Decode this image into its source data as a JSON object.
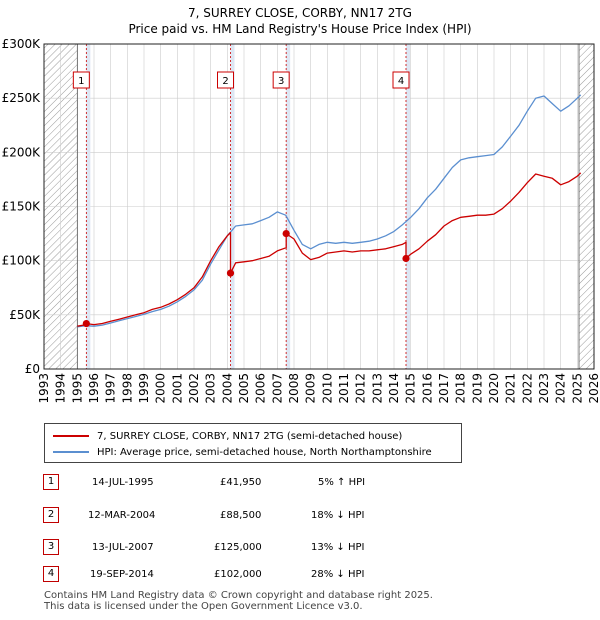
{
  "title_line1": "7, SURREY CLOSE, CORBY, NN17 2TG",
  "title_line2": "Price paid vs. HM Land Registry's House Price Index (HPI)",
  "colors": {
    "property": "#cc0000",
    "hpi": "#5b8fd0",
    "highlight": "#dde6f3",
    "hatch": "#999999",
    "grid": "#cccccc",
    "marker": "#cc0000"
  },
  "chart_data": {
    "type": "line",
    "title": "Price paid vs. HM Land Registry's House Price Index (HPI)",
    "xlim": [
      1993,
      2026
    ],
    "ylim": [
      0,
      300000
    ],
    "x_ticks": [
      "1993",
      "1994",
      "1995",
      "1996",
      "1997",
      "1998",
      "1999",
      "2000",
      "2001",
      "2002",
      "2003",
      "2004",
      "2005",
      "2006",
      "2007",
      "2008",
      "2009",
      "2010",
      "2011",
      "2012",
      "2013",
      "2014",
      "2015",
      "2016",
      "2017",
      "2018",
      "2019",
      "2020",
      "2021",
      "2022",
      "2023",
      "2024",
      "2025",
      "2026"
    ],
    "y_ticks": [
      {
        "value": 0,
        "label": "£0"
      },
      {
        "value": 50000,
        "label": "£50K"
      },
      {
        "value": 100000,
        "label": "£100K"
      },
      {
        "value": 150000,
        "label": "£150K"
      },
      {
        "value": 200000,
        "label": "£200K"
      },
      {
        "value": 250000,
        "label": "£250K"
      },
      {
        "value": 300000,
        "label": "£300K"
      }
    ],
    "hatched_before": 1995.0,
    "hatched_after": 2025.1,
    "series": [
      {
        "name": "HPI: Average price, semi-detached house, North Northamptonshire",
        "x": [
          1995.0,
          1995.5,
          1996.0,
          1996.5,
          1997.0,
          1997.5,
          1998.0,
          1998.5,
          1999.0,
          1999.5,
          2000.0,
          2000.5,
          2001.0,
          2001.5,
          2002.0,
          2002.5,
          2003.0,
          2003.5,
          2004.0,
          2004.5,
          2005.0,
          2005.5,
          2006.0,
          2006.5,
          2007.0,
          2007.5,
          2008.0,
          2008.5,
          2009.0,
          2009.5,
          2010.0,
          2010.5,
          2011.0,
          2011.5,
          2012.0,
          2012.5,
          2013.0,
          2013.5,
          2014.0,
          2014.5,
          2015.0,
          2015.5,
          2016.0,
          2016.5,
          2017.0,
          2017.5,
          2018.0,
          2018.5,
          2019.0,
          2019.5,
          2020.0,
          2020.5,
          2021.0,
          2021.5,
          2022.0,
          2022.5,
          2023.0,
          2023.5,
          2024.0,
          2024.5,
          2025.0,
          2025.2
        ],
        "values": [
          39000,
          40000,
          39500,
          40500,
          42500,
          44500,
          46500,
          48500,
          50500,
          53000,
          55000,
          58000,
          62000,
          67000,
          73000,
          82000,
          97000,
          110000,
          123000,
          132000,
          133000,
          134000,
          137000,
          140000,
          145000,
          142000,
          128000,
          115000,
          111000,
          115000,
          117000,
          116000,
          117000,
          116000,
          117000,
          118000,
          120000,
          123000,
          127000,
          133000,
          140000,
          148000,
          158000,
          166000,
          176000,
          186000,
          193000,
          195000,
          196000,
          197000,
          198000,
          205000,
          215000,
          225000,
          238000,
          250000,
          252000,
          245000,
          238000,
          243000,
          250000,
          253000
        ]
      },
      {
        "name": "7, SURREY CLOSE, CORBY, NN17 2TG (semi-detached house)",
        "x": [
          1995.0,
          1995.54,
          1995.54,
          1996.0,
          1996.5,
          1997.0,
          1997.5,
          1998.0,
          1998.5,
          1999.0,
          1999.5,
          2000.0,
          2000.5,
          2001.0,
          2001.5,
          2002.0,
          2002.5,
          2003.0,
          2003.5,
          2004.0,
          2004.19,
          2004.19,
          2004.5,
          2005.0,
          2005.5,
          2006.0,
          2006.5,
          2007.0,
          2007.53,
          2007.53,
          2008.0,
          2008.5,
          2009.0,
          2009.5,
          2010.0,
          2010.5,
          2011.0,
          2011.5,
          2012.0,
          2012.5,
          2013.0,
          2013.5,
          2014.0,
          2014.5,
          2014.72,
          2014.72,
          2015.0,
          2015.5,
          2016.0,
          2016.5,
          2017.0,
          2017.5,
          2018.0,
          2018.5,
          2019.0,
          2019.5,
          2020.0,
          2020.5,
          2021.0,
          2021.5,
          2022.0,
          2022.5,
          2023.0,
          2023.5,
          2024.0,
          2024.5,
          2025.0,
          2025.2
        ],
        "values": [
          39500,
          41000,
          41950,
          41000,
          42000,
          44000,
          46000,
          48000,
          50000,
          52000,
          55000,
          57000,
          60000,
          64000,
          69000,
          75000,
          85000,
          100000,
          113000,
          123000,
          126000,
          88500,
          98000,
          99000,
          100000,
          102000,
          104000,
          109000,
          112000,
          125000,
          120000,
          107000,
          101000,
          103000,
          107000,
          108000,
          109000,
          108000,
          109000,
          109000,
          110000,
          111000,
          113000,
          115000,
          117000,
          102000,
          106000,
          111000,
          118000,
          124000,
          132000,
          137000,
          140000,
          141000,
          142000,
          142000,
          143000,
          148000,
          155000,
          163000,
          172000,
          180000,
          178000,
          176000,
          170000,
          173000,
          178000,
          181000
        ]
      }
    ],
    "sales": [
      {
        "label": "1",
        "x": 1995.54,
        "value": 41950
      },
      {
        "label": "2",
        "x": 2004.19,
        "value": 88500
      },
      {
        "label": "3",
        "x": 2007.53,
        "value": 125000
      },
      {
        "label": "4",
        "x": 2014.72,
        "value": 102000
      }
    ]
  },
  "legend": {
    "property_label": "7, SURREY CLOSE, CORBY, NN17 2TG (semi-detached house)",
    "hpi_label": "HPI: Average price, semi-detached house, North Northamptonshire"
  },
  "sales_table": [
    {
      "num": "1",
      "date": "14-JUL-1995",
      "price": "£41,950",
      "hpi": "5% ↑ HPI"
    },
    {
      "num": "2",
      "date": "12-MAR-2004",
      "price": "£88,500",
      "hpi": "18% ↓ HPI"
    },
    {
      "num": "3",
      "date": "13-JUL-2007",
      "price": "£125,000",
      "hpi": "13% ↓ HPI"
    },
    {
      "num": "4",
      "date": "19-SEP-2014",
      "price": "£102,000",
      "hpi": "28% ↓ HPI"
    }
  ],
  "footer_line1": "Contains HM Land Registry data © Crown copyright and database right 2025.",
  "footer_line2": "This data is licensed under the Open Government Licence v3.0."
}
